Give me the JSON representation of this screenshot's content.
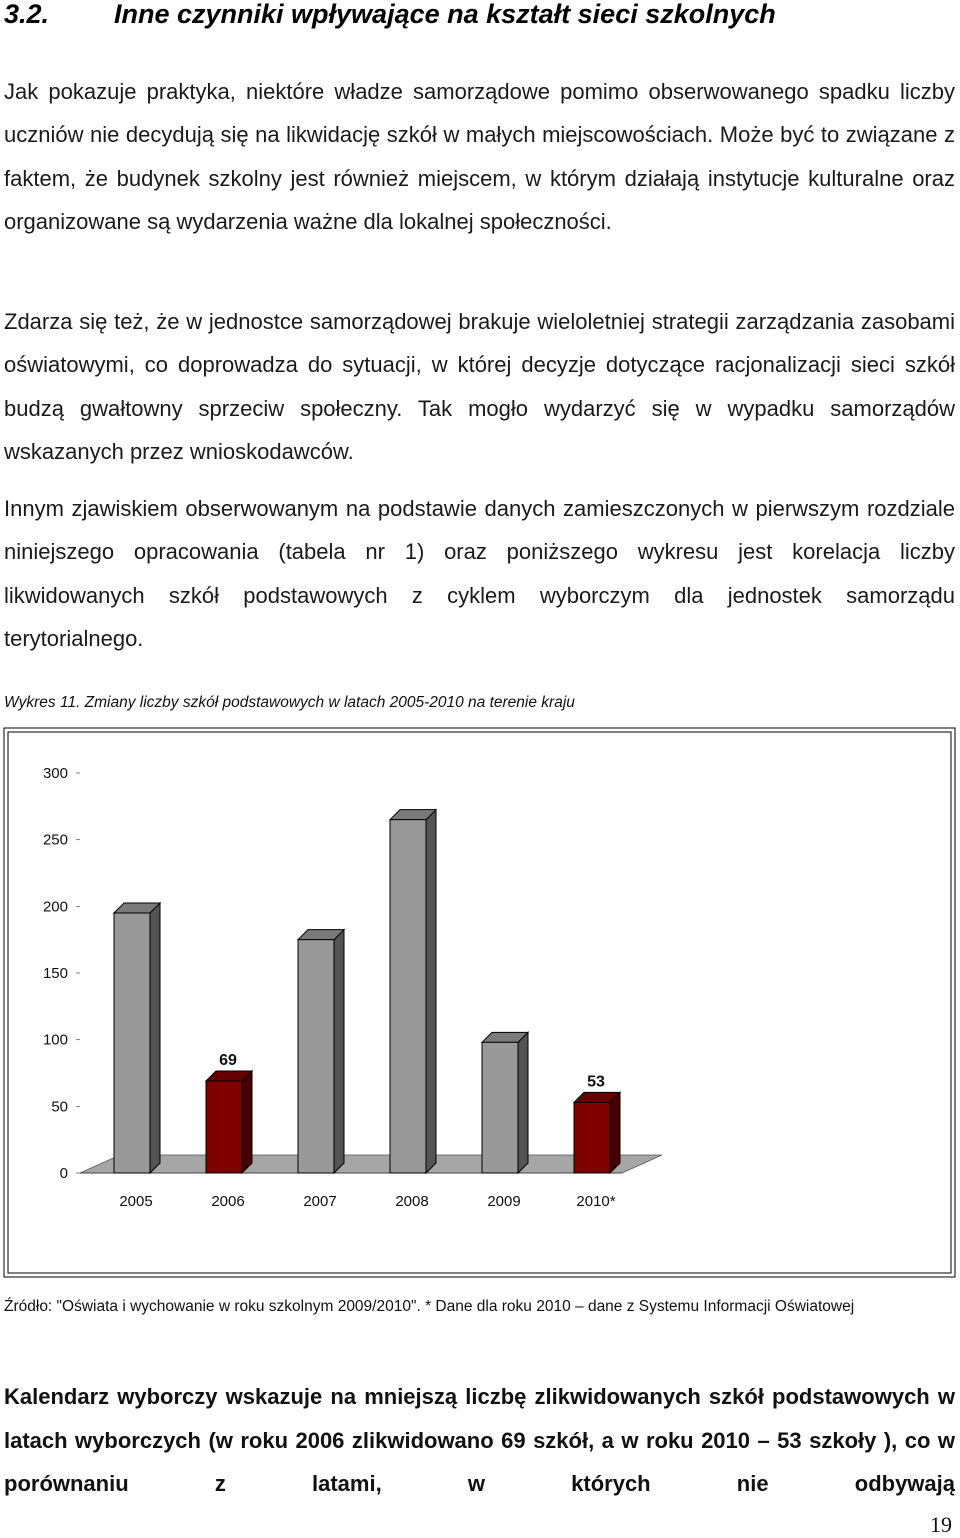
{
  "section": {
    "number": "3.2.",
    "title": "Inne czynniki wpływające na kształt sieci szkolnych"
  },
  "paragraphs": [
    "Jak pokazuje praktyka, niektóre władze samorządowe pomimo obserwowanego spadku liczby uczniów nie decydują się na likwidację szkół w małych miejscowościach. Może być to związane z faktem, że budynek szkolny jest również miejscem, w którym działają instytucje kulturalne oraz organizowane są wydarzenia ważne dla lokalnej społeczności.",
    "Zdarza się też, że w jednostce samorządowej brakuje wieloletniej strategii zarządzania zasobami oświatowymi, co doprowadza do sytuacji, w której decyzje dotyczące racjonalizacji sieci szkół budzą gwałtowny sprzeciw społeczny. Tak mogło wydarzyć się w wypadku samorządów wskazanych przez wnioskodawców.",
    "Innym zjawiskiem obserwowanym na podstawie danych zamieszczonych w pierwszym rozdziale niniejszego opracowania (tabela nr 1) oraz poniższego wykresu jest korelacja liczby likwidowanych szkół podstawowych z cyklem wyborczym dla jednostek samorządu terytorialnego."
  ],
  "chart_caption": "Wykres 11. Zmiany liczby szkół podstawowych w latach 2005-2010 na terenie kraju",
  "chart_data": {
    "type": "bar",
    "categories": [
      "2005",
      "2006",
      "2007",
      "2008",
      "2009",
      "2010*"
    ],
    "values": [
      195,
      69,
      175,
      265,
      98,
      53
    ],
    "data_labels": [
      "",
      "69",
      "",
      "",
      "",
      "53"
    ],
    "colors": [
      "#999999",
      "#800000",
      "#999999",
      "#999999",
      "#999999",
      "#800000"
    ],
    "ylim": [
      0,
      300
    ],
    "yticks": [
      "0",
      "50",
      "100",
      "150",
      "200",
      "250",
      "300"
    ],
    "grid": false,
    "style": "3d"
  },
  "source_note": "Źródło: \"Oświata i wychowanie w roku szkolnym 2009/2010\". * Dane dla roku 2010 – dane z Systemu Informacji Oświatowej",
  "bold_paragraph": "Kalendarz wyborczy wskazuje na mniejszą liczbę zlikwidowanych szkół podstawowych w latach wyborczych (w roku 2006 zlikwidowano 69 szkół, a w roku 2010 – 53 szkoły ), co w porównaniu z latami, w których nie odbywają",
  "page_number": "19"
}
